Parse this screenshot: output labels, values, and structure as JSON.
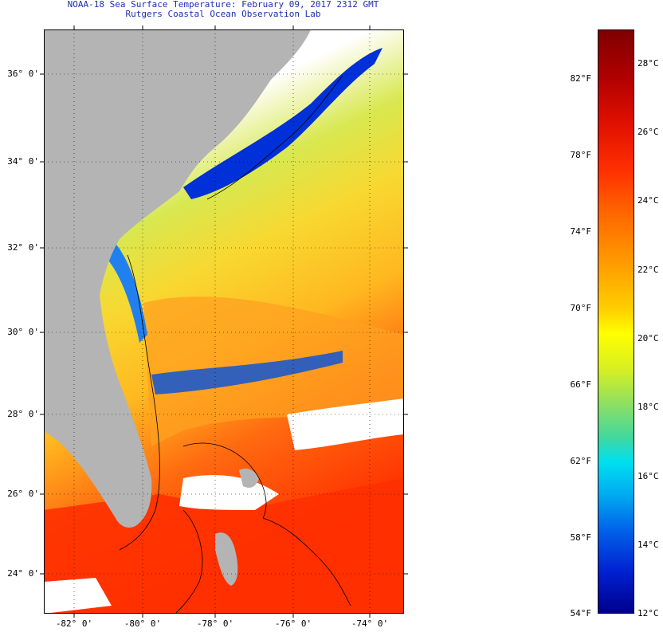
{
  "title": {
    "line1": "NOAA-18 Sea Surface Temperature:  February 09, 2017 2312 GMT",
    "line2": "Rutgers Coastal Ocean Observation Lab"
  },
  "map": {
    "lat_labels": [
      "36° 0'",
      "34° 0'",
      "32° 0'",
      "30° 0'",
      "28° 0'",
      "26° 0'",
      "24° 0'"
    ],
    "lon_labels": [
      "-82° 0'",
      "-80° 0'",
      "-78° 0'",
      "-76° 0'",
      "-74° 0'"
    ],
    "colors": {
      "land": "#b4b4b4",
      "no_data": "#ffffff",
      "cold": "#0030d8",
      "warm": "#ff3000"
    }
  },
  "colorbar": {
    "fahrenheit_labels": [
      "82°F",
      "78°F",
      "74°F",
      "70°F",
      "66°F",
      "62°F",
      "58°F",
      "54°F"
    ],
    "celsius_labels": [
      "28°C",
      "26°C",
      "24°C",
      "22°C",
      "20°C",
      "18°C",
      "16°C",
      "14°C",
      "12°C"
    ]
  }
}
